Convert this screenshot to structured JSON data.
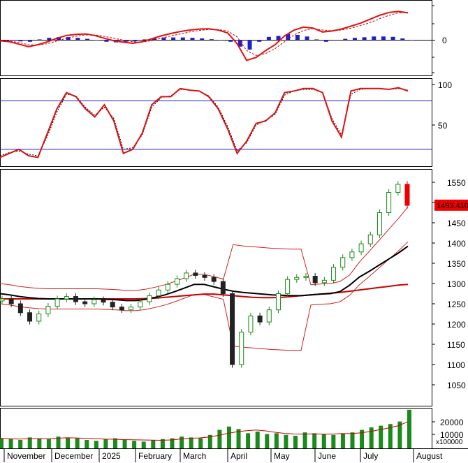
{
  "chart_data": [
    {
      "type": "line",
      "panel": "macd",
      "y_ticks": [
        "0"
      ],
      "series": [
        {
          "values": [
            -0.05,
            -0.1,
            -0.22,
            -0.35,
            -0.25,
            -0.1,
            0.08,
            0.22,
            0.28,
            0.3,
            0.22,
            0.08,
            -0.05,
            -0.12,
            -0.18,
            -0.1,
            0.05,
            0.2,
            0.32,
            0.42,
            0.5,
            0.55,
            0.56,
            0.5,
            0.35,
            -0.2,
            -1.05,
            -0.9,
            -0.55,
            -0.25,
            0.2,
            0.5,
            0.65,
            0.6,
            0.4,
            0.45,
            0.55,
            0.7,
            0.85,
            1.05,
            1.25,
            1.4,
            1.45,
            1.38
          ]
        },
        {
          "values": [
            -0.02,
            -0.06,
            -0.14,
            -0.25,
            -0.27,
            -0.2,
            -0.06,
            0.08,
            0.18,
            0.25,
            0.25,
            0.18,
            0.08,
            -0.02,
            -0.1,
            -0.12,
            -0.04,
            0.08,
            0.2,
            0.3,
            0.4,
            0.48,
            0.53,
            0.52,
            0.45,
            0.15,
            -0.55,
            -0.8,
            -0.7,
            -0.45,
            -0.1,
            0.25,
            0.48,
            0.58,
            0.5,
            0.46,
            0.5,
            0.6,
            0.72,
            0.88,
            1.08,
            1.25,
            1.38,
            1.4
          ]
        }
      ],
      "histogram": [
        -0.03,
        -0.04,
        -0.08,
        -0.1,
        0.02,
        0.1,
        0.14,
        0.14,
        0.1,
        0.05,
        -0.03,
        -0.1,
        -0.13,
        -0.1,
        -0.08,
        0.02,
        0.09,
        0.12,
        0.12,
        0.12,
        0.1,
        0.07,
        0.03,
        -0.02,
        -0.1,
        -0.35,
        -0.5,
        -0.1,
        0.15,
        0.2,
        0.3,
        0.25,
        0.17,
        0.02,
        -0.1,
        -0.01,
        0.05,
        0.1,
        0.13,
        0.17,
        0.17,
        0.15,
        0.07,
        -0.02
      ]
    },
    {
      "type": "line",
      "panel": "stochastic",
      "y_ticks": [
        "100",
        "50"
      ],
      "ylim": [
        0,
        100
      ],
      "reference_lines": [
        80,
        20
      ],
      "series": [
        {
          "values": [
            10,
            15,
            20,
            12,
            10,
            40,
            70,
            90,
            85,
            70,
            60,
            75,
            55,
            15,
            20,
            40,
            75,
            85,
            85,
            95,
            93,
            92,
            85,
            70,
            45,
            15,
            30,
            52,
            55,
            65,
            90,
            92,
            95,
            95,
            90,
            55,
            35,
            92,
            95,
            95,
            95,
            94,
            96,
            92
          ]
        },
        {
          "values": [
            12,
            16,
            18,
            14,
            12,
            36,
            66,
            88,
            86,
            72,
            62,
            72,
            58,
            20,
            22,
            38,
            72,
            84,
            86,
            94,
            93,
            92,
            86,
            72,
            48,
            18,
            28,
            50,
            56,
            63,
            87,
            92,
            94,
            94,
            90,
            58,
            38,
            88,
            94,
            95,
            95,
            94,
            95,
            93
          ]
        }
      ]
    },
    {
      "type": "line",
      "panel": "price",
      "y_ticks": [
        "1550",
        "1500",
        "1450",
        "1400",
        "1350",
        "1300",
        "1250",
        "1200",
        "1150",
        "1100",
        "1050"
      ],
      "ylim": [
        1000,
        1585
      ],
      "last_price_label": "1493.410",
      "x_ticks": [
        "November",
        "December",
        "2025",
        "February",
        "March",
        "April",
        "May",
        "June",
        "July",
        "August"
      ],
      "series": [
        {
          "color": "#1a8a1a",
          "values": [
            1262,
            1250,
            1228,
            1207,
            1225,
            1244,
            1262,
            1268,
            1255,
            1250,
            1260,
            1254,
            1242,
            1235,
            1242,
            1255,
            1270,
            1284,
            1298,
            1312,
            1326,
            1320,
            1315,
            1305,
            1275,
            1100,
            1180,
            1220,
            1205,
            1235,
            1275,
            1310,
            1315,
            1318,
            1302,
            1308,
            1340,
            1364,
            1378,
            1398,
            1420,
            1475,
            1525,
            1545,
            1493
          ]
        },
        {
          "color": "#000000",
          "values": [
            1275,
            1272,
            1268,
            1265,
            1263,
            1262,
            1262,
            1262,
            1262,
            1262,
            1262,
            1261,
            1260,
            1258,
            1258,
            1261,
            1266,
            1272,
            1280,
            1289,
            1298,
            1298,
            1292,
            1286,
            1281,
            1278,
            1276,
            1274,
            1272,
            1271,
            1270,
            1270,
            1272,
            1274,
            1275,
            1280,
            1296,
            1316,
            1330,
            1345,
            1360,
            1375,
            1392
          ]
        },
        {
          "color": "#cc0000",
          "values": [
            1262,
            1262,
            1262,
            1262,
            1262,
            1262,
            1262,
            1262,
            1262,
            1262,
            1262,
            1262,
            1262,
            1262,
            1262,
            1263,
            1264,
            1266,
            1268,
            1270,
            1272,
            1274,
            1274,
            1272,
            1270,
            1268,
            1266,
            1265,
            1265,
            1266,
            1268,
            1270,
            1272,
            1274,
            1276,
            1278,
            1281,
            1284,
            1287,
            1290,
            1293,
            1296,
            1298
          ]
        }
      ]
    },
    {
      "type": "bar",
      "panel": "volume",
      "y_ticks": [
        "20000",
        "10000"
      ],
      "y_unit_label": "x100000",
      "values": [
        0.6,
        0.55,
        0.5,
        0.65,
        0.6,
        0.55,
        0.7,
        0.65,
        0.6,
        0.5,
        0.45,
        0.55,
        0.6,
        0.5,
        0.45,
        0.4,
        0.5,
        0.55,
        0.6,
        0.7,
        0.65,
        0.6,
        0.8,
        1.1,
        1.3,
        1.15,
        0.9,
        1.0,
        0.85,
        0.9,
        0.8,
        0.75,
        0.95,
        0.9,
        0.85,
        0.8,
        0.9,
        0.95,
        1.1,
        1.25,
        1.35,
        1.45,
        1.6,
        2.3
      ]
    }
  ]
}
